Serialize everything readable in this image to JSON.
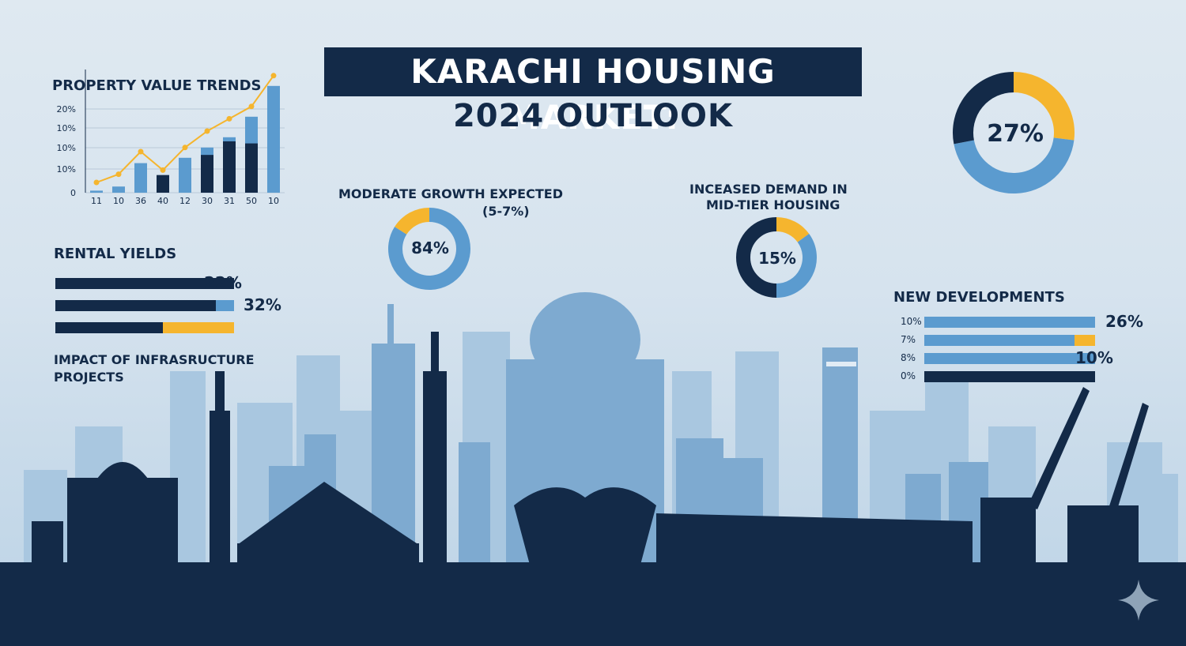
{
  "title": {
    "line1": "KARACHI HOUSING MARKET:",
    "line2": "2024 OUTLOOK"
  },
  "chart_data": [
    {
      "type": "bar",
      "title": "PROPERTY VALUE TRENDS",
      "y_tick_labels": [
        "20%",
        "10%",
        "10%",
        "10%",
        "0"
      ],
      "categories": [
        "11",
        "10",
        "36",
        "40",
        "12",
        "30",
        "31",
        "50",
        "10"
      ],
      "series": [
        {
          "name": "",
          "values": [
            0.05,
            0.15,
            0.72,
            0,
            0.85,
            1.1,
            1.35,
            1.85,
            2.6
          ]
        },
        {
          "name": "",
          "values": [
            0,
            0,
            0,
            0.43,
            0,
            0.92,
            1.25,
            1.2,
            0
          ]
        }
      ],
      "line": {
        "values": [
          0.25,
          0.45,
          1.0,
          0.55,
          1.1,
          1.5,
          1.8,
          2.1,
          2.85
        ]
      },
      "colors": {
        "light": "#5b9bcf",
        "dark": "#132a48",
        "line": "#f5b52e"
      }
    },
    {
      "type": "pie",
      "title": "MODERATE GROWTH EXPECTED",
      "subtitle": "(5-7%)",
      "center_label": "84%",
      "slices": [
        {
          "value": 84,
          "color": "#5b9bcf"
        },
        {
          "value": 16,
          "color": "#f5b52e"
        }
      ]
    },
    {
      "type": "pie",
      "title": "INCEASED DEMAND IN",
      "subtitle": "MID-TIER HOUSING",
      "center_label": "15%",
      "slices": [
        {
          "value": 15,
          "color": "#f5b52e"
        },
        {
          "value": 35,
          "color": "#5b9bcf"
        },
        {
          "value": 50,
          "color": "#132a48"
        }
      ]
    },
    {
      "type": "pie",
      "center_label": "27%",
      "slices": [
        {
          "value": 27,
          "color": "#f5b52e"
        },
        {
          "value": 45,
          "color": "#5b9bcf"
        },
        {
          "value": 28,
          "color": "#132a48"
        }
      ]
    },
    {
      "type": "bar",
      "orientation": "horizontal",
      "title": "RENTAL YIELDS",
      "rows": [
        {
          "label": "22%",
          "segments": [
            {
              "value": 100,
              "color": "#132a48"
            }
          ]
        },
        {
          "label": "32%",
          "segments": [
            {
              "value": 90,
              "color": "#132a48"
            },
            {
              "value": 10,
              "color": "#5b9bcf"
            }
          ]
        },
        {
          "label": "",
          "segments": [
            {
              "value": 60,
              "color": "#132a48"
            },
            {
              "value": 40,
              "color": "#f5b52e"
            }
          ]
        }
      ]
    },
    {
      "type": "bar",
      "orientation": "horizontal",
      "title": "NEW DEVELOPMENTS",
      "rows": [
        {
          "tick": "10%",
          "label": "26%",
          "segments": [
            {
              "value": 100,
              "color": "#5b9bcf"
            }
          ]
        },
        {
          "tick": "7%",
          "label": "",
          "segments": [
            {
              "value": 88,
              "color": "#5b9bcf"
            },
            {
              "value": 12,
              "color": "#f5b52e"
            }
          ]
        },
        {
          "tick": "8%",
          "label": "10%",
          "segments": [
            {
              "value": 100,
              "color": "#5b9bcf"
            }
          ]
        },
        {
          "tick": "0%",
          "label": "",
          "segments": [
            {
              "value": 100,
              "color": "#132a48"
            }
          ]
        }
      ]
    }
  ],
  "infrastructure": {
    "label_line1": "IMPACT OF INFRASRUCTURE",
    "label_line2": "PROJECTS"
  },
  "colors": {
    "navy": "#132a48",
    "blue": "#5b9bcf",
    "amber": "#f5b52e"
  },
  "icons": {
    "corner": "sparkle-icon"
  }
}
